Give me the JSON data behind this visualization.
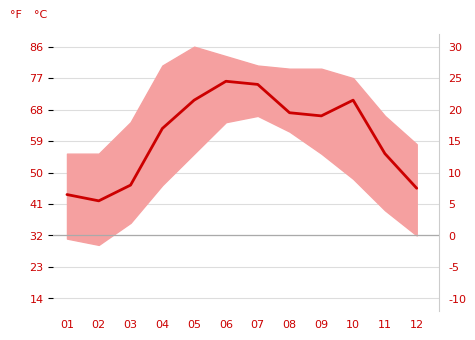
{
  "months": [
    1,
    2,
    3,
    4,
    5,
    6,
    7,
    8,
    9,
    10,
    11,
    12
  ],
  "month_labels": [
    "01",
    "02",
    "03",
    "04",
    "05",
    "06",
    "07",
    "08",
    "09",
    "10",
    "11",
    "12"
  ],
  "avg_temp_c": [
    6.5,
    5.5,
    8.0,
    17.0,
    21.5,
    24.5,
    24.0,
    19.5,
    19.0,
    21.5,
    13.0,
    7.5
  ],
  "max_temp_c": [
    13.0,
    13.0,
    18.0,
    27.0,
    30.0,
    28.5,
    27.0,
    26.5,
    26.5,
    25.0,
    19.0,
    14.5
  ],
  "min_temp_c": [
    -0.5,
    -1.5,
    2.0,
    8.0,
    13.0,
    18.0,
    19.0,
    16.5,
    13.0,
    9.0,
    4.0,
    0.0
  ],
  "line_color": "#cc0000",
  "fill_color": "#f5a0a0",
  "zero_line_color": "#aaaaaa",
  "background_color": "#ffffff",
  "grid_color": "#dddddd",
  "label_f": "°F",
  "label_c": "°C",
  "yticks_c": [
    -10,
    -5,
    0,
    5,
    10,
    15,
    20,
    25,
    30
  ],
  "yticks_f": [
    14,
    23,
    32,
    41,
    50,
    59,
    68,
    77,
    86
  ],
  "ylim_c": [
    -12,
    32
  ],
  "xlim": [
    0.55,
    12.7
  ]
}
